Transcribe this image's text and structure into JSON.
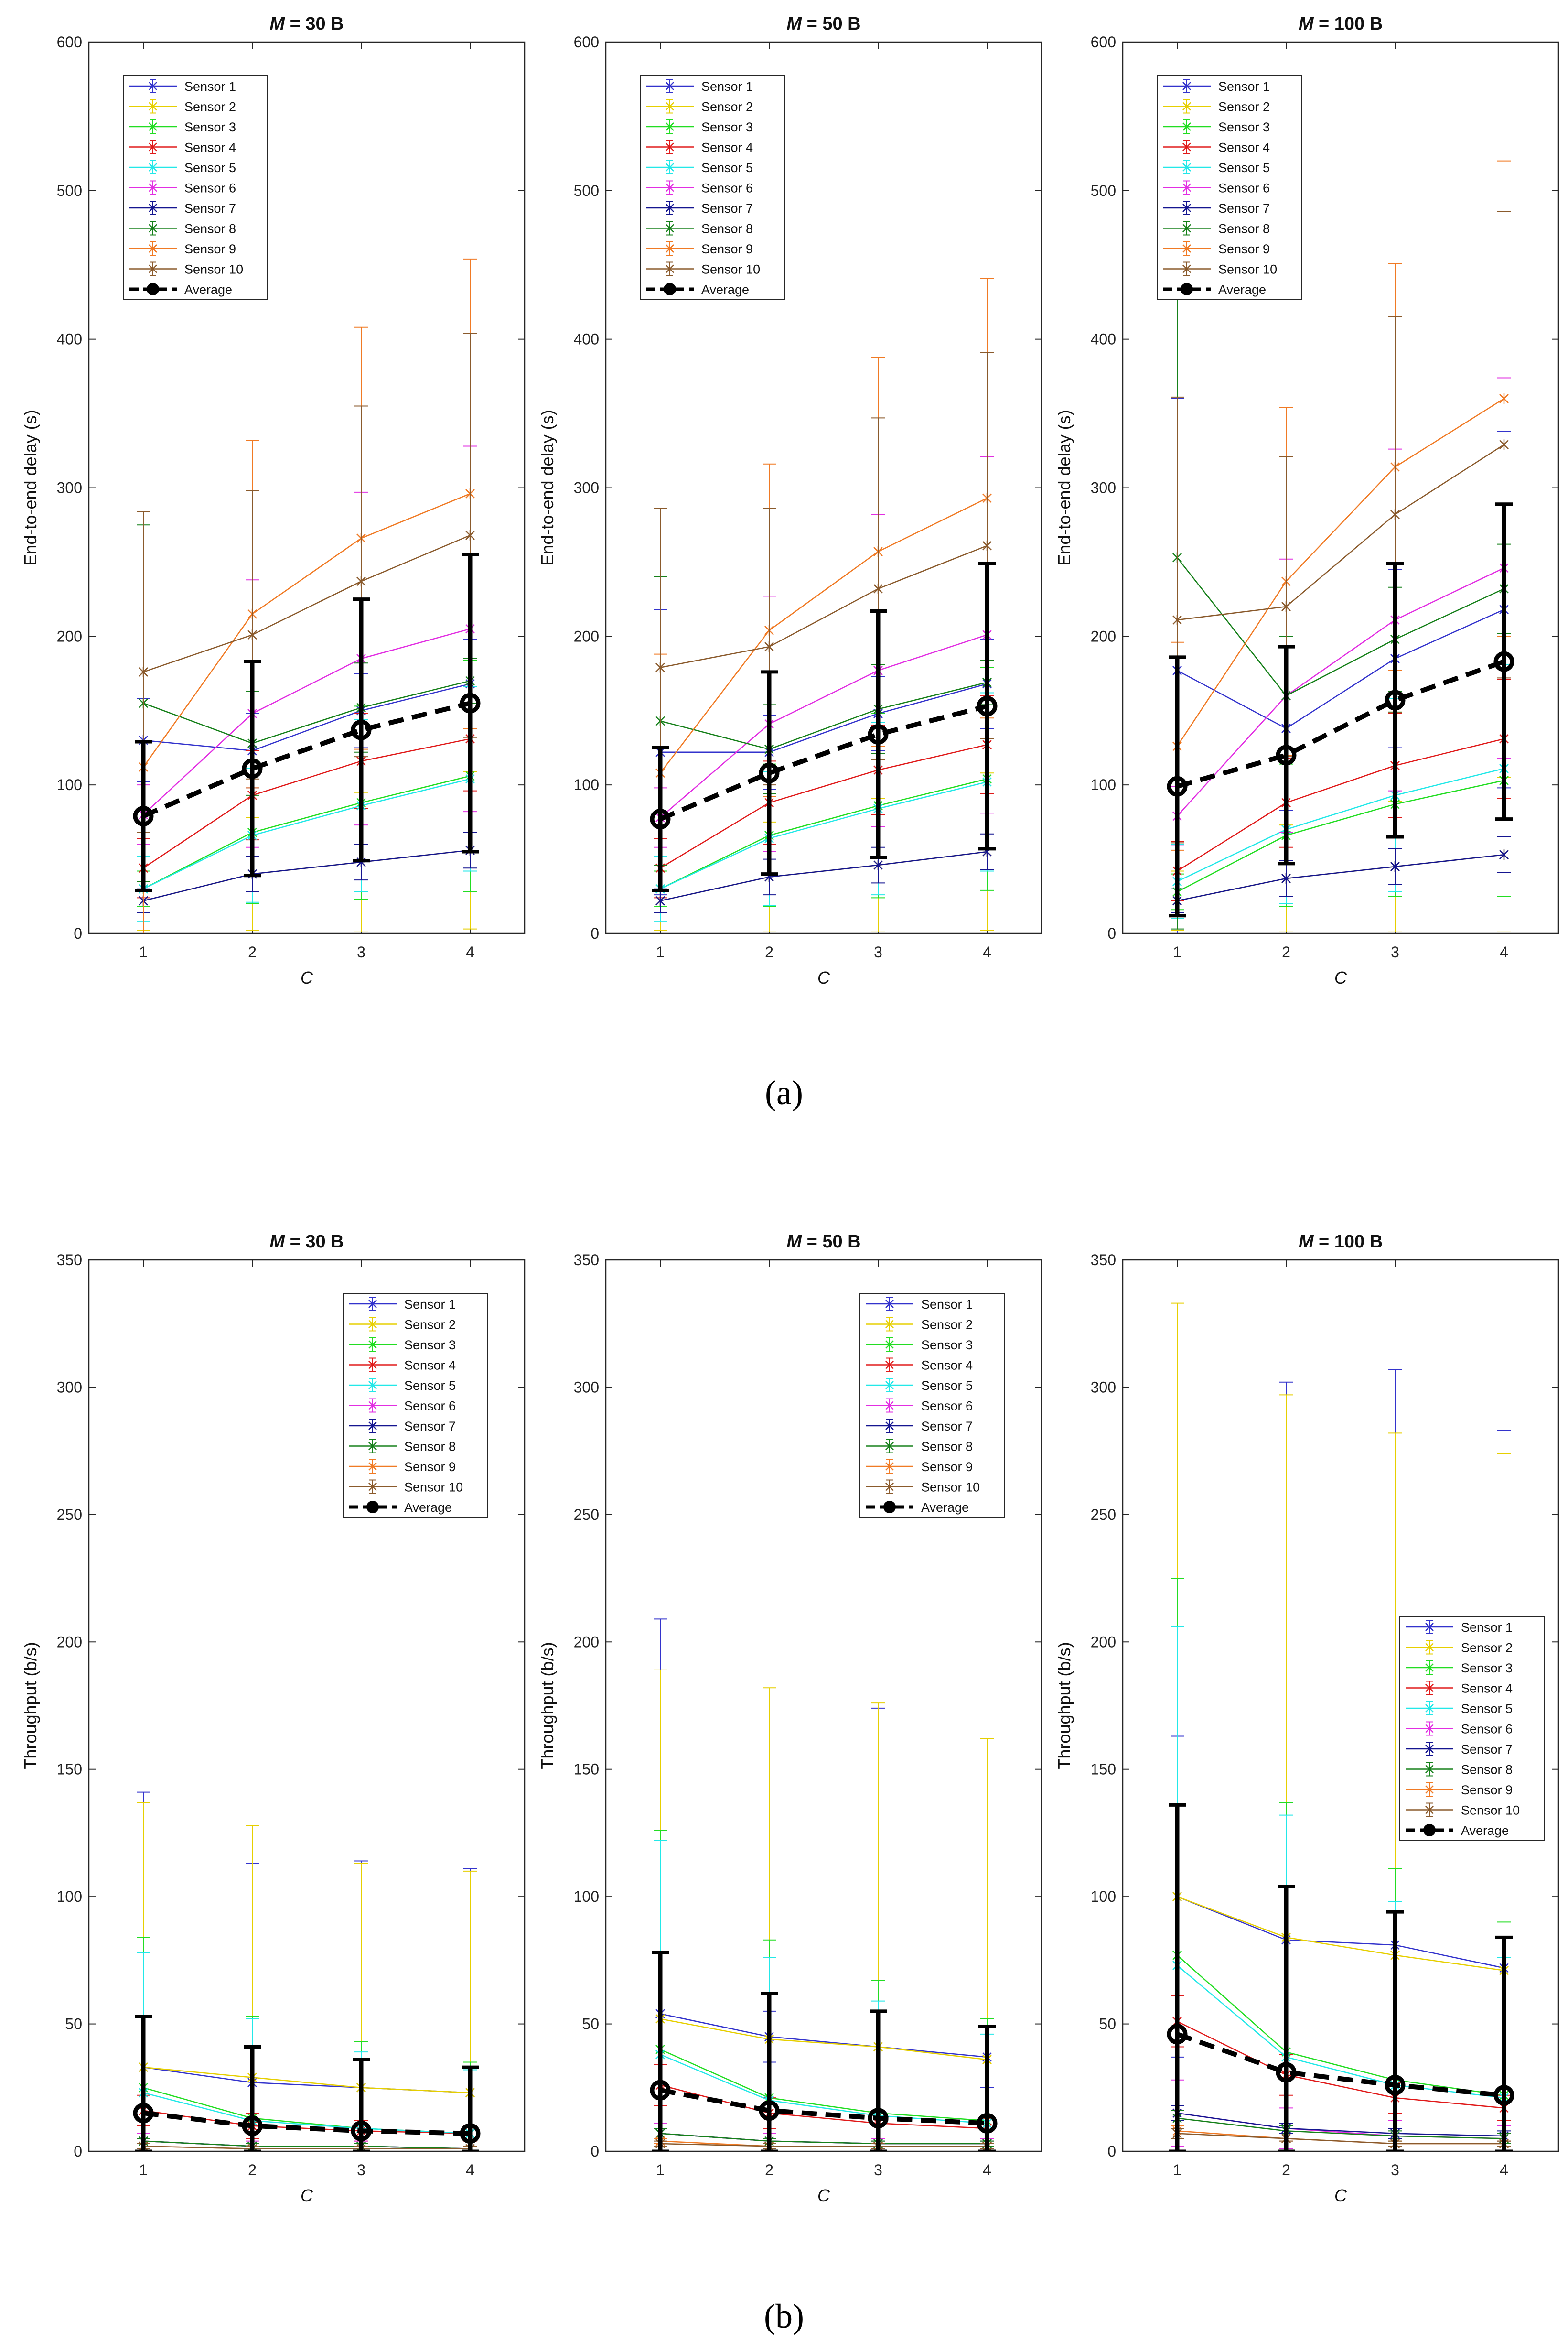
{
  "figure": {
    "subfig_labels": [
      "(a)",
      "(b)"
    ]
  },
  "legend_average_label": "Average",
  "colors": {
    "sensors": [
      "#3333cc",
      "#e6cf00",
      "#22dd22",
      "#e01a1a",
      "#22e8e8",
      "#e22ee2",
      "#151590",
      "#16801a",
      "#f07a24",
      "#8a5a2c"
    ],
    "average": "#000000"
  },
  "chart_data": [
    {
      "type": "line",
      "title": "M = 30 B",
      "xlabel": "C",
      "ylabel": "End-to-end delay (s)",
      "x": [
        1,
        2,
        3,
        4
      ],
      "xlim": [
        0.5,
        4.5
      ],
      "ylim": [
        0,
        600
      ],
      "yticks": [
        0,
        100,
        200,
        300,
        400,
        500,
        600
      ],
      "legend_position": "top-left",
      "series": [
        {
          "name": "Sensor 1",
          "values": [
            130,
            123,
            150,
            168
          ],
          "error": [
            28,
            25,
            25,
            30
          ]
        },
        {
          "name": "Sensor 2",
          "values": [
            22,
            40,
            48,
            56
          ],
          "error": [
            20,
            38,
            47,
            53
          ]
        },
        {
          "name": "Sensor 3",
          "values": [
            30,
            68,
            88,
            106
          ],
          "error": [
            12,
            48,
            65,
            78
          ]
        },
        {
          "name": "Sensor 4",
          "values": [
            44,
            93,
            116,
            131
          ],
          "error": [
            20,
            30,
            32,
            35
          ]
        },
        {
          "name": "Sensor 5",
          "values": [
            30,
            66,
            86,
            104
          ],
          "error": [
            22,
            45,
            58,
            62
          ]
        },
        {
          "name": "Sensor 6",
          "values": [
            80,
            148,
            185,
            205
          ],
          "error": [
            20,
            90,
            112,
            123
          ]
        },
        {
          "name": "Sensor 7",
          "values": [
            22,
            40,
            48,
            56
          ],
          "error": [
            8,
            12,
            12,
            12
          ]
        },
        {
          "name": "Sensor 8",
          "values": [
            155,
            128,
            152,
            170
          ],
          "error": [
            120,
            35,
            30,
            15
          ]
        },
        {
          "name": "Sensor 9",
          "values": [
            112,
            215,
            266,
            296
          ],
          "error": [
            172,
            117,
            142,
            158
          ]
        },
        {
          "name": "Sensor 10",
          "values": [
            176,
            201,
            237,
            268
          ],
          "error": [
            108,
            97,
            118,
            136
          ]
        }
      ],
      "average": {
        "name": "Average",
        "values": [
          79,
          111,
          137,
          155
        ],
        "error": [
          50,
          72,
          88,
          100
        ]
      }
    },
    {
      "type": "line",
      "title": "M = 50 B",
      "xlabel": "C",
      "ylabel": "End-to-end delay (s)",
      "x": [
        1,
        2,
        3,
        4
      ],
      "xlim": [
        0.5,
        4.5
      ],
      "ylim": [
        0,
        600
      ],
      "yticks": [
        0,
        100,
        200,
        300,
        400,
        500,
        600
      ],
      "legend_position": "top-left",
      "series": [
        {
          "name": "Sensor 1",
          "values": [
            122,
            122,
            148,
            168
          ],
          "error": [
            96,
            25,
            25,
            30
          ]
        },
        {
          "name": "Sensor 2",
          "values": [
            22,
            38,
            46,
            55
          ],
          "error": [
            20,
            37,
            45,
            53
          ]
        },
        {
          "name": "Sensor 3",
          "values": [
            30,
            66,
            86,
            104
          ],
          "error": [
            12,
            48,
            62,
            75
          ]
        },
        {
          "name": "Sensor 4",
          "values": [
            44,
            88,
            110,
            127
          ],
          "error": [
            20,
            28,
            30,
            33
          ]
        },
        {
          "name": "Sensor 5",
          "values": [
            30,
            64,
            84,
            102
          ],
          "error": [
            22,
            45,
            58,
            60
          ]
        },
        {
          "name": "Sensor 6",
          "values": [
            78,
            141,
            177,
            201
          ],
          "error": [
            20,
            86,
            105,
            120
          ]
        },
        {
          "name": "Sensor 7",
          "values": [
            22,
            38,
            46,
            55
          ],
          "error": [
            8,
            12,
            12,
            12
          ]
        },
        {
          "name": "Sensor 8",
          "values": [
            143,
            124,
            151,
            169
          ],
          "error": [
            97,
            30,
            30,
            15
          ]
        },
        {
          "name": "Sensor 9",
          "values": [
            108,
            204,
            257,
            293
          ],
          "error": [
            80,
            112,
            131,
            148
          ]
        },
        {
          "name": "Sensor 10",
          "values": [
            179,
            193,
            232,
            261
          ],
          "error": [
            107,
            93,
            115,
            130
          ]
        }
      ],
      "average": {
        "name": "Average",
        "values": [
          77,
          108,
          134,
          153
        ],
        "error": [
          48,
          68,
          83,
          96
        ]
      }
    },
    {
      "type": "line",
      "title": "M = 100 B",
      "xlabel": "C",
      "ylabel": "End-to-end delay (s)",
      "x": [
        1,
        2,
        3,
        4
      ],
      "xlim": [
        0.5,
        4.5
      ],
      "ylim": [
        0,
        600
      ],
      "yticks": [
        0,
        100,
        200,
        300,
        400,
        500,
        600
      ],
      "legend_position": "top-left",
      "series": [
        {
          "name": "Sensor 1",
          "values": [
            177,
            138,
            185,
            218
          ],
          "error": [
            183,
            55,
            60,
            120
          ]
        },
        {
          "name": "Sensor 2",
          "values": [
            22,
            37,
            45,
            53
          ],
          "error": [
            20,
            36,
            44,
            52
          ]
        },
        {
          "name": "Sensor 3",
          "values": [
            28,
            66,
            87,
            103
          ],
          "error": [
            12,
            48,
            62,
            78
          ]
        },
        {
          "name": "Sensor 4",
          "values": [
            42,
            88,
            113,
            131
          ],
          "error": [
            20,
            30,
            35,
            40
          ]
        },
        {
          "name": "Sensor 5",
          "values": [
            35,
            70,
            93,
            111
          ],
          "error": [
            25,
            50,
            65,
            70
          ]
        },
        {
          "name": "Sensor 6",
          "values": [
            79,
            160,
            211,
            246
          ],
          "error": [
            20,
            92,
            115,
            128
          ]
        },
        {
          "name": "Sensor 7",
          "values": [
            22,
            37,
            45,
            53
          ],
          "error": [
            8,
            12,
            12,
            12
          ]
        },
        {
          "name": "Sensor 8",
          "values": [
            253,
            160,
            198,
            232
          ],
          "error": [
            250,
            40,
            35,
            30
          ]
        },
        {
          "name": "Sensor 9",
          "values": [
            126,
            237,
            314,
            360
          ],
          "error": [
            70,
            117,
            137,
            160
          ]
        },
        {
          "name": "Sensor 10",
          "values": [
            211,
            220,
            282,
            329
          ],
          "error": [
            150,
            101,
            133,
            157
          ]
        }
      ],
      "average": {
        "name": "Average",
        "values": [
          99,
          120,
          157,
          183
        ],
        "error": [
          87,
          73,
          92,
          106
        ]
      }
    },
    {
      "type": "line",
      "title": "M = 30 B",
      "xlabel": "C",
      "ylabel": "Throughput (b/s)",
      "x": [
        1,
        2,
        3,
        4
      ],
      "xlim": [
        0.5,
        4.5
      ],
      "ylim": [
        0,
        350
      ],
      "yticks": [
        0,
        50,
        100,
        150,
        200,
        250,
        300,
        350
      ],
      "legend_position": "top-right",
      "series": [
        {
          "name": "Sensor 1",
          "values": [
            33,
            27,
            25,
            23
          ],
          "error": [
            108,
            86,
            89,
            88
          ]
        },
        {
          "name": "Sensor 2",
          "values": [
            33,
            29,
            25,
            23
          ],
          "error": [
            104,
            99,
            88,
            87
          ]
        },
        {
          "name": "Sensor 3",
          "values": [
            25,
            13,
            9,
            7
          ],
          "error": [
            59,
            40,
            34,
            28
          ]
        },
        {
          "name": "Sensor 4",
          "values": [
            16,
            10,
            8,
            7
          ],
          "error": [
            6,
            5,
            4,
            3
          ]
        },
        {
          "name": "Sensor 5",
          "values": [
            23,
            12,
            9,
            7
          ],
          "error": [
            55,
            40,
            30,
            25
          ]
        },
        {
          "name": "Sensor 6",
          "values": [
            4,
            2,
            2,
            1
          ],
          "error": [
            3,
            2,
            2,
            1
          ]
        },
        {
          "name": "Sensor 7",
          "values": [
            4,
            2,
            2,
            1
          ],
          "error": [
            1,
            1,
            1,
            1
          ]
        },
        {
          "name": "Sensor 8",
          "values": [
            4,
            2,
            2,
            1
          ],
          "error": [
            1,
            1,
            1,
            1
          ]
        },
        {
          "name": "Sensor 9",
          "values": [
            2,
            1,
            1,
            1
          ],
          "error": [
            1,
            1,
            1,
            1
          ]
        },
        {
          "name": "Sensor 10",
          "values": [
            2,
            1,
            1,
            1
          ],
          "error": [
            1,
            1,
            1,
            1
          ]
        }
      ],
      "average": {
        "name": "Average",
        "values": [
          15,
          10,
          8,
          7
        ],
        "error": [
          38,
          31,
          28,
          26
        ]
      }
    },
    {
      "type": "line",
      "title": "M = 50 B",
      "xlabel": "C",
      "ylabel": "Throughput (b/s)",
      "x": [
        1,
        2,
        3,
        4
      ],
      "xlim": [
        0.5,
        4.5
      ],
      "ylim": [
        0,
        350
      ],
      "yticks": [
        0,
        50,
        100,
        150,
        200,
        250,
        300,
        350
      ],
      "legend_position": "top-right",
      "series": [
        {
          "name": "Sensor 1",
          "values": [
            54,
            45,
            41,
            37
          ],
          "error": [
            155,
            10,
            133,
            12
          ]
        },
        {
          "name": "Sensor 2",
          "values": [
            52,
            44,
            41,
            36
          ],
          "error": [
            137,
            138,
            135,
            126
          ]
        },
        {
          "name": "Sensor 3",
          "values": [
            40,
            21,
            15,
            12
          ],
          "error": [
            86,
            62,
            52,
            40
          ]
        },
        {
          "name": "Sensor 4",
          "values": [
            26,
            15,
            11,
            9
          ],
          "error": [
            8,
            6,
            5,
            4
          ]
        },
        {
          "name": "Sensor 5",
          "values": [
            38,
            20,
            14,
            11
          ],
          "error": [
            84,
            56,
            45,
            35
          ]
        },
        {
          "name": "Sensor 6",
          "values": [
            7,
            4,
            3,
            3
          ],
          "error": [
            4,
            3,
            2,
            2
          ]
        },
        {
          "name": "Sensor 7",
          "values": [
            7,
            4,
            3,
            3
          ],
          "error": [
            2,
            1,
            1,
            1
          ]
        },
        {
          "name": "Sensor 8",
          "values": [
            7,
            4,
            3,
            3
          ],
          "error": [
            2,
            1,
            1,
            1
          ]
        },
        {
          "name": "Sensor 9",
          "values": [
            4,
            2,
            2,
            2
          ],
          "error": [
            1,
            1,
            1,
            1
          ]
        },
        {
          "name": "Sensor 10",
          "values": [
            3,
            2,
            2,
            2
          ],
          "error": [
            1,
            1,
            1,
            1
          ]
        }
      ],
      "average": {
        "name": "Average",
        "values": [
          24,
          16,
          13,
          11
        ],
        "error": [
          54,
          46,
          42,
          38
        ]
      }
    },
    {
      "type": "line",
      "title": "M = 100 B",
      "xlabel": "C",
      "ylabel": "Throughput (b/s)",
      "x": [
        1,
        2,
        3,
        4
      ],
      "xlim": [
        0.5,
        4.5
      ],
      "ylim": [
        0,
        350
      ],
      "yticks": [
        0,
        50,
        100,
        150,
        200,
        250,
        300,
        350
      ],
      "legend_position": "center-right",
      "series": [
        {
          "name": "Sensor 1",
          "values": [
            100,
            83,
            81,
            72
          ],
          "error": [
            63,
            219,
            226,
            211
          ]
        },
        {
          "name": "Sensor 2",
          "values": [
            100,
            84,
            77,
            71
          ],
          "error": [
            233,
            213,
            205,
            203
          ]
        },
        {
          "name": "Sensor 3",
          "values": [
            77,
            39,
            28,
            22
          ],
          "error": [
            148,
            98,
            83,
            68
          ]
        },
        {
          "name": "Sensor 4",
          "values": [
            51,
            30,
            21,
            17
          ],
          "error": [
            10,
            8,
            6,
            5
          ]
        },
        {
          "name": "Sensor 5",
          "values": [
            73,
            37,
            26,
            21
          ],
          "error": [
            133,
            95,
            72,
            55
          ]
        },
        {
          "name": "Sensor 6",
          "values": [
            15,
            9,
            6,
            5
          ],
          "error": [
            13,
            8,
            6,
            5
          ]
        },
        {
          "name": "Sensor 7",
          "values": [
            15,
            9,
            7,
            6
          ],
          "error": [
            3,
            2,
            2,
            2
          ]
        },
        {
          "name": "Sensor 8",
          "values": [
            13,
            8,
            6,
            5
          ],
          "error": [
            3,
            2,
            2,
            2
          ]
        },
        {
          "name": "Sensor 9",
          "values": [
            8,
            5,
            3,
            3
          ],
          "error": [
            2,
            1,
            1,
            1
          ]
        },
        {
          "name": "Sensor 10",
          "values": [
            7,
            5,
            3,
            3
          ],
          "error": [
            2,
            1,
            1,
            1
          ]
        }
      ],
      "average": {
        "name": "Average",
        "values": [
          46,
          31,
          26,
          22
        ],
        "error": [
          90,
          73,
          68,
          62
        ]
      }
    }
  ]
}
